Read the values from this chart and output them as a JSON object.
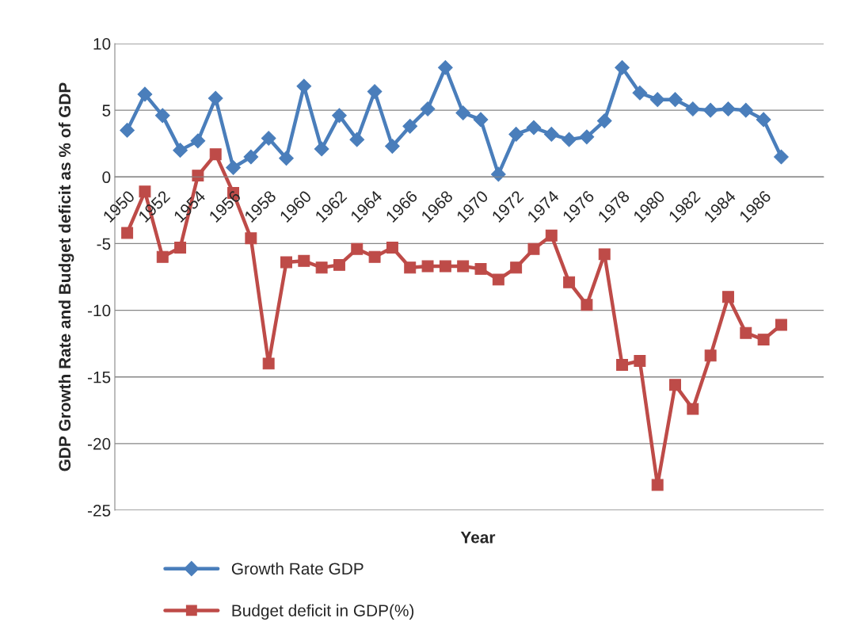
{
  "chart_data": {
    "type": "line",
    "xlabel": "Year",
    "ylabel": "GDP Growth Rate and Budget deficit as % of GDP",
    "categories": [
      "1950",
      null,
      "1952",
      null,
      "1954",
      null,
      "1956",
      null,
      "1958",
      null,
      "1960",
      null,
      "1962",
      null,
      "1964",
      null,
      "1966",
      null,
      "1968",
      null,
      "1970",
      null,
      "1972",
      null,
      "1974",
      null,
      "1976",
      null,
      "1978",
      null,
      "1980",
      null,
      "1982",
      null,
      "1984",
      null,
      "1986",
      null
    ],
    "series": [
      {
        "name": "Growth Rate GDP",
        "color": "#4a7ebb",
        "marker": "diamond",
        "values": [
          3.5,
          6.2,
          4.6,
          2.0,
          2.7,
          5.9,
          0.7,
          1.5,
          2.9,
          1.4,
          6.8,
          2.1,
          4.6,
          2.8,
          6.4,
          2.3,
          3.8,
          5.1,
          8.2,
          4.8,
          4.3,
          0.2,
          3.2,
          3.7,
          3.2,
          2.8,
          3.0,
          4.2,
          8.2,
          6.3,
          5.8,
          5.8,
          5.1,
          5.0,
          5.1,
          5.0,
          4.3,
          1.5
        ]
      },
      {
        "name": "Budget deficit in GDP(%)",
        "color": "#be4b48",
        "marker": "square",
        "values": [
          -4.2,
          -1.1,
          -6.0,
          -5.3,
          0.1,
          1.7,
          -1.2,
          -4.6,
          -14.0,
          -6.4,
          -6.3,
          -6.8,
          -6.6,
          -5.4,
          -6.0,
          -5.3,
          -6.8,
          -6.7,
          -6.7,
          -6.7,
          -6.9,
          -7.7,
          -6.8,
          -5.4,
          -4.4,
          -7.9,
          -9.6,
          -5.8,
          -14.1,
          -13.8,
          -23.1,
          -15.6,
          -17.4,
          -13.4,
          -9.0,
          -11.7,
          -12.2,
          -11.1
        ]
      }
    ],
    "ylim": [
      -25,
      10
    ],
    "yticks": [
      -25,
      -20,
      -15,
      -10,
      -5,
      0,
      5,
      10
    ],
    "grid": "y",
    "legend": "bottom left"
  }
}
